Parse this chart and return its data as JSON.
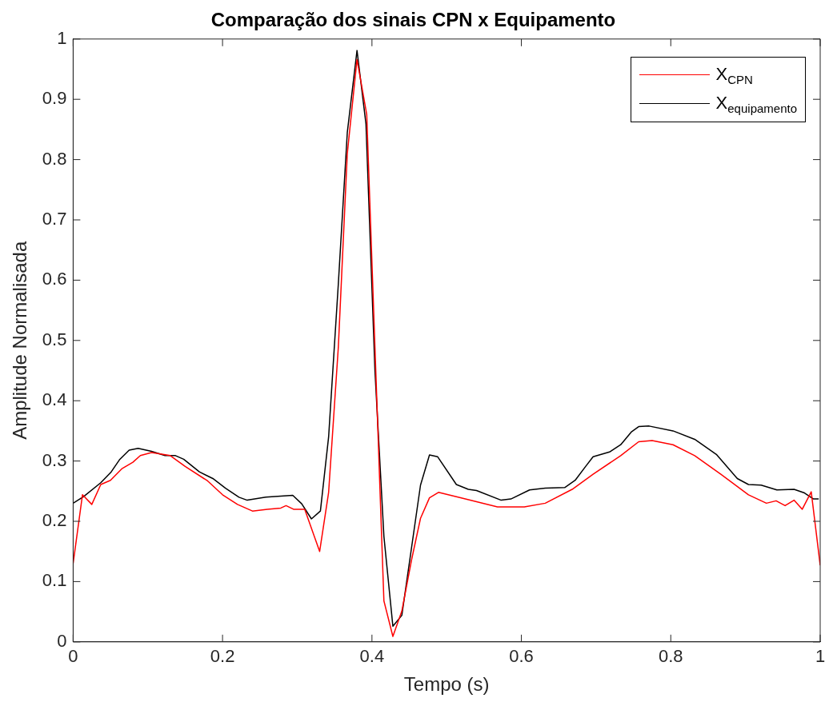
{
  "chart_data": {
    "type": "line",
    "title": "Comparação dos sinais CPN x Equipamento",
    "xlabel": "Tempo (s)",
    "ylabel": "Amplitude Normalisada",
    "xlim": [
      0,
      1
    ],
    "xticks": [
      0,
      0.2,
      0.4,
      0.6,
      0.8,
      1
    ],
    "ylim": [
      0,
      1
    ],
    "yticks": [
      0,
      0.1,
      0.2,
      0.3,
      0.4,
      0.5,
      0.6,
      0.7,
      0.8,
      0.9,
      1
    ],
    "legend": "top right",
    "marker": "none",
    "line_style": "solid",
    "series": [
      {
        "name": "X$_{CPN}$",
        "color": "#ff0000",
        "x": [
          0,
          0.0125,
          0.025,
          0.037,
          0.05,
          0.065,
          0.08,
          0.09,
          0.105,
          0.13,
          0.15,
          0.18,
          0.2,
          0.22,
          0.24,
          0.26,
          0.278,
          0.285,
          0.295,
          0.31,
          0.33,
          0.342,
          0.355,
          0.367,
          0.38,
          0.393,
          0.404,
          0.416,
          0.428,
          0.44,
          0.453,
          0.465,
          0.477,
          0.489,
          0.525,
          0.568,
          0.604,
          0.632,
          0.668,
          0.696,
          0.733,
          0.757,
          0.775,
          0.803,
          0.832,
          0.867,
          0.904,
          0.928,
          0.941,
          0.953,
          0.965,
          0.976,
          0.988,
          1
        ],
        "values": [
          0.13,
          0.244,
          0.228,
          0.261,
          0.268,
          0.287,
          0.298,
          0.309,
          0.314,
          0.309,
          0.291,
          0.267,
          0.244,
          0.228,
          0.217,
          0.22,
          0.222,
          0.226,
          0.22,
          0.22,
          0.15,
          0.248,
          0.489,
          0.81,
          0.966,
          0.875,
          0.489,
          0.068,
          0.009,
          0.051,
          0.136,
          0.205,
          0.239,
          0.248,
          0.237,
          0.224,
          0.224,
          0.23,
          0.253,
          0.278,
          0.309,
          0.332,
          0.334,
          0.327,
          0.309,
          0.278,
          0.244,
          0.23,
          0.234,
          0.226,
          0.235,
          0.22,
          0.249,
          0.127
        ]
      },
      {
        "name": "X$_{equipamento}$",
        "color": "#000000",
        "x": [
          0,
          0.014,
          0.037,
          0.051,
          0.062,
          0.075,
          0.087,
          0.105,
          0.123,
          0.137,
          0.148,
          0.169,
          0.187,
          0.204,
          0.222,
          0.233,
          0.258,
          0.294,
          0.306,
          0.319,
          0.331,
          0.342,
          0.355,
          0.367,
          0.38,
          0.392,
          0.404,
          0.416,
          0.428,
          0.44,
          0.465,
          0.477,
          0.488,
          0.513,
          0.529,
          0.54,
          0.573,
          0.586,
          0.611,
          0.632,
          0.658,
          0.672,
          0.686,
          0.696,
          0.718,
          0.733,
          0.747,
          0.757,
          0.771,
          0.803,
          0.832,
          0.861,
          0.889,
          0.904,
          0.921,
          0.942,
          0.965,
          0.979,
          0.991,
          0.998
        ],
        "values": [
          0.23,
          0.241,
          0.264,
          0.282,
          0.302,
          0.318,
          0.321,
          0.316,
          0.309,
          0.309,
          0.303,
          0.282,
          0.271,
          0.255,
          0.24,
          0.235,
          0.24,
          0.243,
          0.229,
          0.204,
          0.217,
          0.34,
          0.594,
          0.845,
          0.981,
          0.859,
          0.45,
          0.175,
          0.026,
          0.044,
          0.26,
          0.31,
          0.307,
          0.261,
          0.253,
          0.251,
          0.235,
          0.237,
          0.252,
          0.255,
          0.256,
          0.268,
          0.291,
          0.307,
          0.315,
          0.327,
          0.348,
          0.357,
          0.358,
          0.35,
          0.336,
          0.311,
          0.271,
          0.261,
          0.26,
          0.252,
          0.253,
          0.247,
          0.237,
          0.237
        ]
      }
    ]
  }
}
